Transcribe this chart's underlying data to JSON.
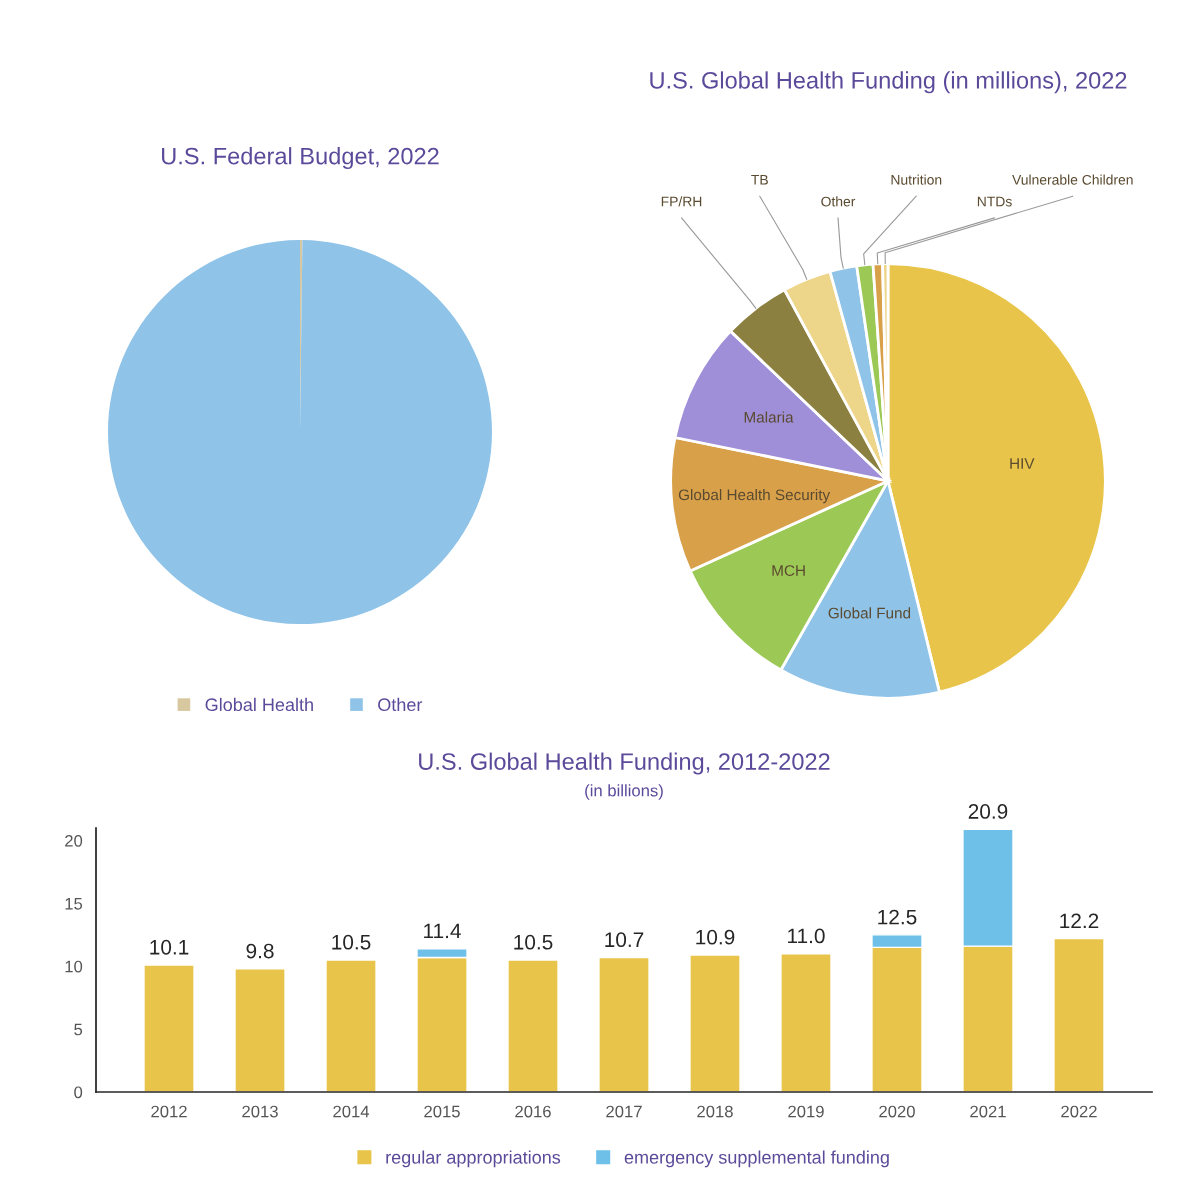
{
  "chart_data": [
    {
      "type": "pie",
      "title": "U.S. Federal Budget, 2022",
      "categories": [
        "Global Health",
        "Other"
      ],
      "values": [
        0.2,
        99.8
      ],
      "colors": [
        "#d8c8a0",
        "#8fc3e8"
      ],
      "legend": "bottom"
    },
    {
      "type": "pie",
      "title": "U.S. Global Health Funding (in millions), 2022",
      "categories": [
        "HIV",
        "Global Fund",
        "MCH",
        "Global Health Security",
        "Malaria",
        "FP/RH",
        "TB",
        "Other",
        "Nutrition",
        "NTDs",
        "Vulnerable Children"
      ],
      "values": [
        46.2,
        12,
        10,
        10,
        8.9,
        5,
        3.6,
        2,
        1.2,
        0.7,
        0.4
      ],
      "colors": [
        "#e8c54a",
        "#8fc3e8",
        "#9cc855",
        "#d9a04a",
        "#9f8fd8",
        "#8c8040",
        "#edd58a",
        "#8fc3e8",
        "#9cc855",
        "#d9a04a",
        "#edd58a"
      ]
    },
    {
      "type": "bar",
      "title": "U.S. Global Health Funding, 2012-2022",
      "subtitle": "(in billions)",
      "categories": [
        "2012",
        "2013",
        "2014",
        "2015",
        "2016",
        "2017",
        "2018",
        "2019",
        "2020",
        "2021",
        "2022"
      ],
      "stacked": true,
      "series": [
        {
          "name": "regular appropriations",
          "color": "#e8c54a",
          "values": [
            10.1,
            9.8,
            10.5,
            10.7,
            10.5,
            10.7,
            10.9,
            11.0,
            11.5,
            11.6,
            12.2
          ]
        },
        {
          "name": "emergency supplemental funding",
          "color": "#6ec0e8",
          "values": [
            null,
            null,
            null,
            0.7,
            null,
            null,
            null,
            null,
            1.0,
            9.3,
            null
          ]
        }
      ],
      "totals": [
        "10.1",
        "9.8",
        "10.5",
        "11.4",
        "10.5",
        "10.7",
        "10.9",
        "11.0",
        "12.5",
        "20.9",
        "12.2"
      ],
      "ylim": [
        0,
        21
      ],
      "yticks": [
        0,
        5,
        10,
        15,
        20
      ],
      "legend": "bottom",
      "grid": false
    }
  ]
}
